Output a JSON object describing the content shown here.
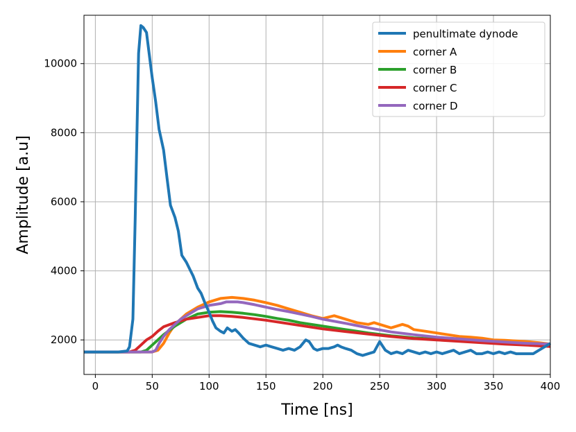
{
  "chart_data": {
    "type": "line",
    "title": "",
    "xlabel": "Time [ns]",
    "ylabel": "Amplitude [a.u]",
    "xlim": [
      -10,
      400
    ],
    "ylim": [
      1000,
      11400
    ],
    "xticks": [
      0,
      50,
      100,
      150,
      200,
      250,
      300,
      350,
      400
    ],
    "yticks": [
      2000,
      4000,
      6000,
      8000,
      10000
    ],
    "grid": true,
    "legend_position": "top-right",
    "series": [
      {
        "name": "penultimate dynode",
        "color": "#1f77b4",
        "x": [
          -10,
          0,
          10,
          20,
          28,
          30,
          33,
          35,
          38,
          40,
          42,
          45,
          48,
          50,
          53,
          56,
          60,
          63,
          66,
          70,
          73,
          76,
          80,
          83,
          86,
          90,
          93,
          96,
          100,
          103,
          106,
          110,
          113,
          116,
          120,
          123,
          126,
          130,
          135,
          140,
          145,
          150,
          155,
          160,
          165,
          170,
          175,
          180,
          185,
          188,
          192,
          195,
          200,
          205,
          210,
          213,
          216,
          220,
          225,
          230,
          235,
          240,
          245,
          250,
          255,
          260,
          265,
          270,
          275,
          280,
          285,
          290,
          295,
          300,
          305,
          310,
          315,
          320,
          325,
          330,
          335,
          340,
          345,
          350,
          355,
          360,
          365,
          370,
          375,
          380,
          385,
          390,
          395,
          400
        ],
        "y": [
          1650,
          1650,
          1650,
          1650,
          1680,
          1800,
          2600,
          5500,
          10300,
          11100,
          11050,
          10900,
          10100,
          9600,
          8900,
          8100,
          7500,
          6700,
          5900,
          5550,
          5150,
          4450,
          4250,
          4050,
          3850,
          3500,
          3350,
          3100,
          2800,
          2550,
          2350,
          2250,
          2200,
          2350,
          2250,
          2300,
          2200,
          2050,
          1900,
          1850,
          1800,
          1850,
          1800,
          1750,
          1700,
          1750,
          1700,
          1800,
          2000,
          1950,
          1750,
          1700,
          1750,
          1750,
          1800,
          1850,
          1800,
          1750,
          1700,
          1600,
          1550,
          1600,
          1650,
          1950,
          1700,
          1600,
          1650,
          1600,
          1700,
          1650,
          1600,
          1650,
          1600,
          1650,
          1600,
          1650,
          1700,
          1600,
          1650,
          1700,
          1600,
          1600,
          1650,
          1600,
          1650,
          1600,
          1650,
          1600,
          1600,
          1600,
          1600,
          1700,
          1800,
          1900
        ]
      },
      {
        "name": "corner A",
        "color": "#ff7f0e",
        "x": [
          -10,
          0,
          10,
          20,
          30,
          40,
          50,
          55,
          60,
          65,
          70,
          80,
          90,
          100,
          110,
          120,
          130,
          140,
          150,
          160,
          170,
          180,
          190,
          200,
          210,
          220,
          230,
          240,
          245,
          250,
          260,
          270,
          275,
          280,
          290,
          300,
          310,
          320,
          330,
          340,
          350,
          360,
          370,
          380,
          390,
          400
        ],
        "y": [
          1650,
          1650,
          1650,
          1650,
          1650,
          1650,
          1650,
          1700,
          1900,
          2200,
          2450,
          2750,
          2950,
          3100,
          3200,
          3230,
          3200,
          3150,
          3080,
          3000,
          2900,
          2800,
          2700,
          2620,
          2700,
          2600,
          2500,
          2450,
          2500,
          2450,
          2350,
          2450,
          2400,
          2300,
          2250,
          2200,
          2150,
          2100,
          2080,
          2050,
          2000,
          1990,
          1970,
          1950,
          1920,
          1880
        ]
      },
      {
        "name": "corner B",
        "color": "#2ca02c",
        "x": [
          -10,
          0,
          10,
          20,
          30,
          40,
          45,
          50,
          55,
          60,
          70,
          80,
          90,
          100,
          110,
          120,
          130,
          140,
          150,
          160,
          170,
          180,
          190,
          200,
          220,
          240,
          260,
          280,
          300,
          320,
          340,
          360,
          380,
          400
        ],
        "y": [
          1650,
          1650,
          1650,
          1650,
          1650,
          1650,
          1700,
          1850,
          2000,
          2150,
          2400,
          2600,
          2750,
          2800,
          2820,
          2800,
          2770,
          2730,
          2680,
          2620,
          2570,
          2500,
          2450,
          2400,
          2300,
          2200,
          2120,
          2060,
          2020,
          1980,
          1940,
          1900,
          1870,
          1830
        ]
      },
      {
        "name": "corner C",
        "color": "#d62728",
        "x": [
          -10,
          0,
          10,
          20,
          30,
          35,
          40,
          45,
          50,
          55,
          60,
          70,
          80,
          90,
          100,
          110,
          120,
          130,
          140,
          150,
          160,
          170,
          180,
          190,
          200,
          220,
          240,
          260,
          280,
          300,
          320,
          340,
          360,
          380,
          400
        ],
        "y": [
          1650,
          1650,
          1650,
          1650,
          1650,
          1700,
          1850,
          2000,
          2100,
          2250,
          2380,
          2500,
          2600,
          2650,
          2700,
          2700,
          2680,
          2650,
          2610,
          2570,
          2520,
          2470,
          2420,
          2370,
          2320,
          2240,
          2170,
          2100,
          2040,
          2000,
          1960,
          1920,
          1880,
          1850,
          1810
        ]
      },
      {
        "name": "corner D",
        "color": "#9467bd",
        "x": [
          -10,
          0,
          10,
          20,
          30,
          40,
          50,
          53,
          56,
          60,
          65,
          70,
          75,
          80,
          90,
          100,
          110,
          115,
          120,
          125,
          130,
          140,
          150,
          160,
          170,
          180,
          190,
          200,
          220,
          240,
          260,
          280,
          300,
          320,
          340,
          360,
          380,
          400
        ],
        "y": [
          1650,
          1650,
          1650,
          1650,
          1650,
          1650,
          1650,
          1700,
          1900,
          2100,
          2300,
          2450,
          2600,
          2700,
          2900,
          3000,
          3050,
          3100,
          3100,
          3100,
          3080,
          3020,
          2950,
          2880,
          2820,
          2750,
          2680,
          2600,
          2480,
          2350,
          2230,
          2150,
          2080,
          2030,
          1980,
          1940,
          1900,
          1880
        ]
      }
    ]
  },
  "legend": {
    "items": [
      "penultimate dynode",
      "corner A",
      "corner B",
      "corner C",
      "corner D"
    ]
  }
}
